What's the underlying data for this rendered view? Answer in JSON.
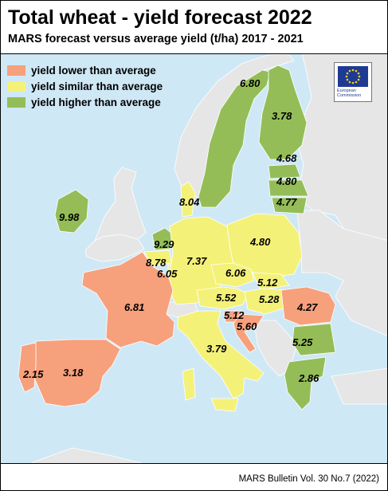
{
  "header": {
    "title": "Total wheat - yield forecast 2022",
    "subtitle": "MARS forecast versus average yield (t/ha) 2017 - 2021"
  },
  "legend": {
    "items": [
      {
        "label": "yield lower than average",
        "color": "#f7a07c"
      },
      {
        "label": "yield similar than average",
        "color": "#f4f179"
      },
      {
        "label": "yield higher than average",
        "color": "#94bd58"
      }
    ]
  },
  "logo": {
    "text_line1": "European",
    "text_line2": "Commission"
  },
  "colors": {
    "sea": "#cfe8f6",
    "no_data_land": "#e6e6e6",
    "lower": "#f7a07c",
    "similar": "#f4f179",
    "higher": "#94bd58",
    "border": "#ffffff"
  },
  "regions": {
    "sweden": {
      "value": "6.80",
      "category": "higher"
    },
    "finland": {
      "value": "3.78",
      "category": "higher"
    },
    "estonia": {
      "value": "4.68",
      "category": "higher"
    },
    "latvia": {
      "value": "4.80",
      "category": "higher"
    },
    "lithuania": {
      "value": "4.77",
      "category": "higher"
    },
    "ireland": {
      "value": "9.98",
      "category": "higher"
    },
    "denmark": {
      "value": "8.04",
      "category": "similar"
    },
    "netherlands": {
      "value": "9.29",
      "category": "higher"
    },
    "belgium": {
      "value": "8.78",
      "category": "similar"
    },
    "luxembourg": {
      "value": "6.05",
      "category": "similar"
    },
    "germany": {
      "value": "7.37",
      "category": "similar"
    },
    "poland": {
      "value": "4.80",
      "category": "similar"
    },
    "czechia": {
      "value": "6.06",
      "category": "similar"
    },
    "slovakia": {
      "value": "5.12",
      "category": "similar"
    },
    "austria": {
      "value": "5.52",
      "category": "similar"
    },
    "hungary": {
      "value": "5.28",
      "category": "similar"
    },
    "slovenia": {
      "value": "5.12",
      "category": "lower"
    },
    "croatia": {
      "value": "5.60",
      "category": "lower"
    },
    "romania": {
      "value": "4.27",
      "category": "lower"
    },
    "bulgaria": {
      "value": "5.25",
      "category": "higher"
    },
    "greece": {
      "value": "2.86",
      "category": "higher"
    },
    "france": {
      "value": "6.81",
      "category": "lower"
    },
    "spain": {
      "value": "3.18",
      "category": "lower"
    },
    "portugal": {
      "value": "2.15",
      "category": "lower"
    },
    "italy": {
      "value": "3.79",
      "category": "similar"
    }
  },
  "footer": {
    "source": "MARS Bulletin Vol. 30 No.7 (2022)"
  }
}
